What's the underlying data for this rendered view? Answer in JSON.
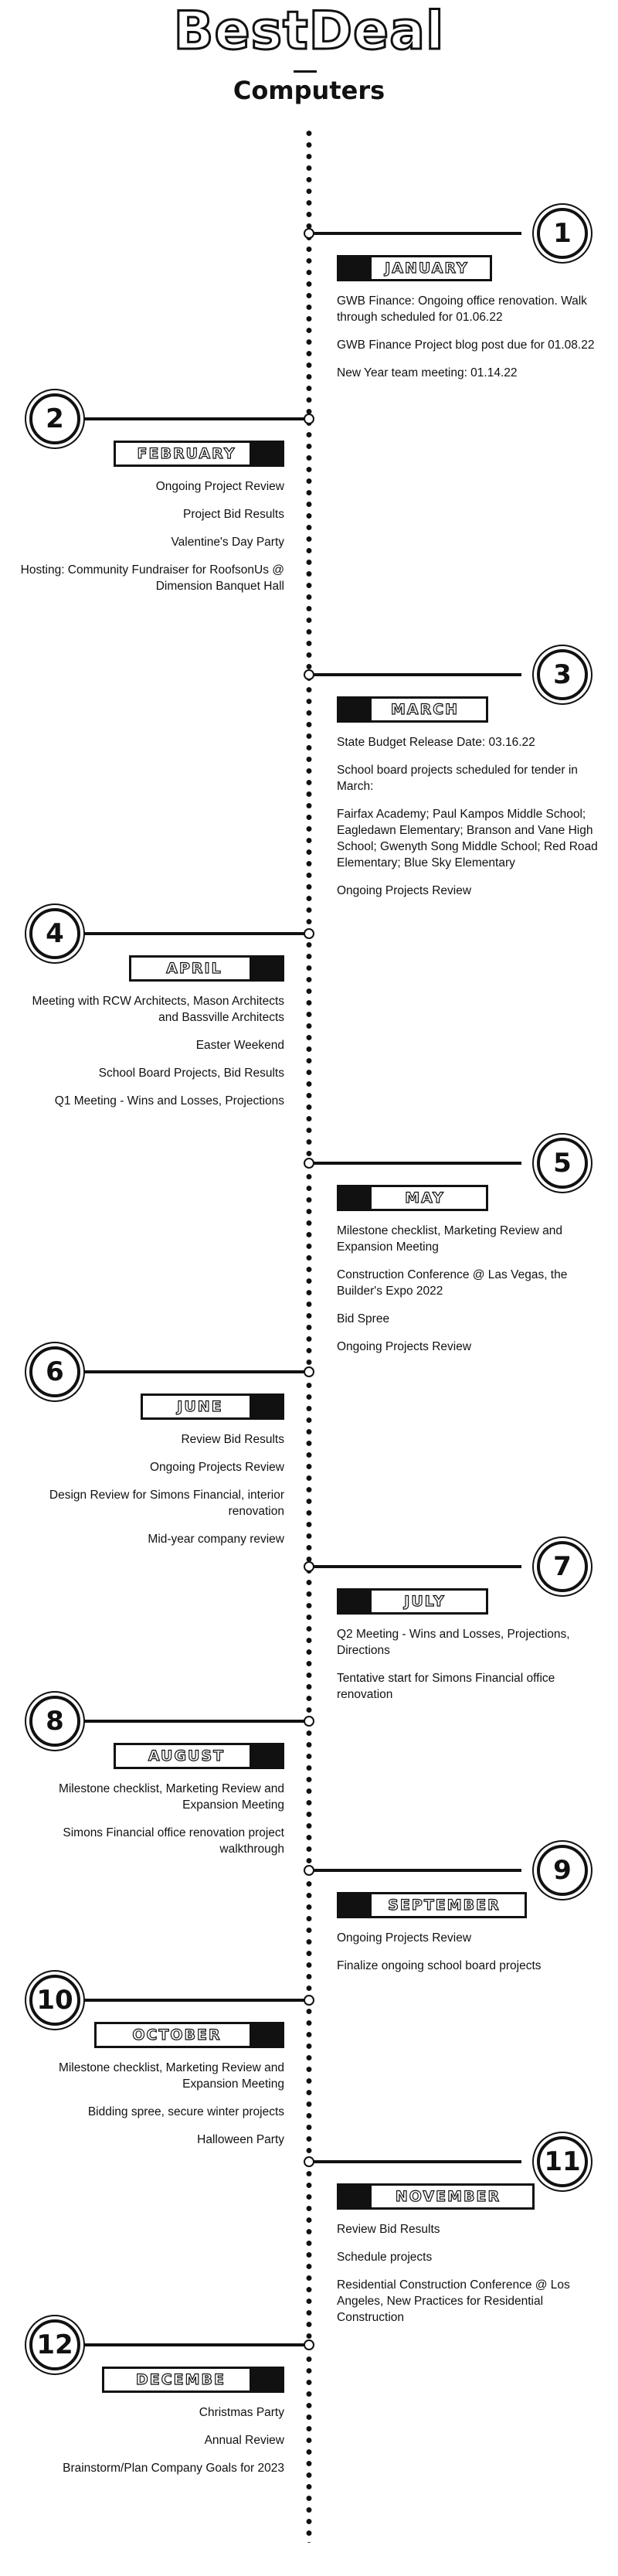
{
  "header": {
    "brand": "BestDeal",
    "subtitle": "Computers"
  },
  "months": [
    {
      "number": "1",
      "name": "JANUARY",
      "events": [
        "GWB Finance: Ongoing office renovation. Walk through scheduled for 01.06.22",
        "GWB Finance Project blog post due for 01.08.22",
        "New Year team meeting: 01.14.22"
      ]
    },
    {
      "number": "2",
      "name": "FEBRUARY",
      "events": [
        "Ongoing Project Review",
        "Project Bid Results",
        "Valentine's Day Party",
        "Hosting: Community Fundraiser for RoofsonUs @ Dimension Banquet Hall"
      ]
    },
    {
      "number": "3",
      "name": "MARCH",
      "events": [
        "State Budget Release Date: 03.16.22",
        "School board projects scheduled for tender in March:",
        "Fairfax Academy; Paul Kampos Middle School; Eagledawn Elementary; Branson and Vane High School; Gwenyth Song Middle School; Red Road Elementary; Blue Sky Elementary",
        "Ongoing Projects Review"
      ]
    },
    {
      "number": "4",
      "name": "APRIL",
      "events": [
        "Meeting with RCW Architects, Mason Architects and Bassville Architects",
        "Easter Weekend",
        "School Board Projects, Bid Results",
        "Q1 Meeting - Wins and Losses, Projections"
      ]
    },
    {
      "number": "5",
      "name": "MAY",
      "events": [
        "Milestone checklist, Marketing Review and Expansion Meeting",
        "Construction Conference @ Las Vegas, the Builder's Expo 2022",
        "Bid Spree",
        "Ongoing Projects Review"
      ]
    },
    {
      "number": "6",
      "name": "JUNE",
      "events": [
        "Review Bid Results",
        "Ongoing Projects Review",
        "Design Review for Simons Financial, interior renovation",
        "Mid-year company review"
      ]
    },
    {
      "number": "7",
      "name": "JULY",
      "events": [
        "Q2 Meeting - Wins and Losses, Projections, Directions",
        "Tentative start for Simons Financial office renovation"
      ]
    },
    {
      "number": "8",
      "name": "AUGUST",
      "events": [
        "Milestone checklist, Marketing Review and Expansion Meeting",
        "Simons Financial office renovation project walkthrough"
      ]
    },
    {
      "number": "9",
      "name": "SEPTEMBER",
      "events": [
        "Ongoing Projects Review",
        "Finalize ongoing school board projects"
      ]
    },
    {
      "number": "10",
      "name": "OCTOBER",
      "events": [
        "Milestone checklist, Marketing Review and Expansion Meeting",
        "Bidding spree, secure winter projects",
        "Halloween Party"
      ]
    },
    {
      "number": "11",
      "name": "NOVEMBER",
      "events": [
        "Review Bid Results",
        "Schedule projects",
        "Residential Construction Conference @ Los Angeles, New Practices for Residential Construction"
      ]
    },
    {
      "number": "12",
      "name": "DECEMBE",
      "events": [
        "Christmas Party",
        "Annual Review",
        "Brainstorm/Plan Company Goals for 2023"
      ]
    }
  ]
}
